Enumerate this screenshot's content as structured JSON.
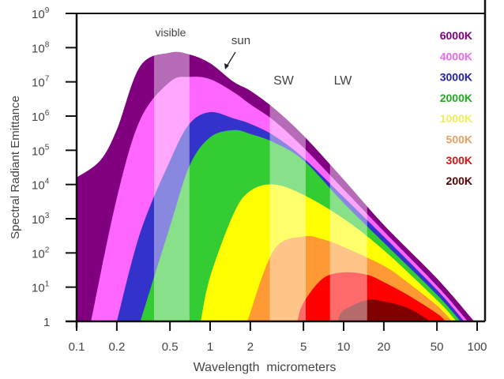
{
  "chart_data": {
    "type": "area",
    "xlabel": "Wavelength  micrometers",
    "ylabel": "Spectral Radiant Emittance",
    "x_scale": "log",
    "y_scale": "log",
    "xlim": [
      0.1,
      100
    ],
    "ylim": [
      1,
      1000000000
    ],
    "grid": false,
    "legend_placement": "top-right",
    "x_ticks": [
      {
        "value": 0.1,
        "label": "0.1"
      },
      {
        "value": 0.2,
        "label": "0.2"
      },
      {
        "value": 0.5,
        "label": "0.5"
      },
      {
        "value": 1,
        "label": "1"
      },
      {
        "value": 2,
        "label": "2"
      },
      {
        "value": 5,
        "label": "5"
      },
      {
        "value": 10,
        "label": "10"
      },
      {
        "value": 20,
        "label": "20"
      },
      {
        "value": 50,
        "label": "50"
      },
      {
        "value": 100,
        "label": "100"
      }
    ],
    "y_ticks": [
      {
        "value": 1,
        "base": "1",
        "exp": ""
      },
      {
        "value": 10,
        "base": "10",
        "exp": "1"
      },
      {
        "value": 100,
        "base": "10",
        "exp": "2"
      },
      {
        "value": 1000,
        "base": "10",
        "exp": "3"
      },
      {
        "value": 10000,
        "base": "10",
        "exp": "4"
      },
      {
        "value": 100000,
        "base": "10",
        "exp": "5"
      },
      {
        "value": 1000000,
        "base": "10",
        "exp": "6"
      },
      {
        "value": 10000000,
        "base": "10",
        "exp": "7"
      },
      {
        "value": 100000000,
        "base": "10",
        "exp": "8"
      },
      {
        "value": 1000000000,
        "base": "10",
        "exp": "9"
      }
    ],
    "series": [
      {
        "name": "6000K",
        "color": "#800080",
        "x": [
          0.1,
          0.15,
          0.2,
          0.3,
          0.5,
          0.7,
          1,
          1.5,
          2,
          3,
          5,
          10,
          20,
          50,
          95
        ],
        "y": [
          16000,
          50000,
          400000,
          29000000,
          71000000,
          63000000,
          35000000,
          10000000,
          5500000,
          1700000,
          270000,
          14000,
          660,
          18,
          1
        ]
      },
      {
        "name": "4000K",
        "color": "#ff66ff",
        "x": [
          0.128,
          0.2,
          0.3,
          0.5,
          0.7,
          1,
          1.5,
          2,
          3,
          5,
          10,
          20,
          50,
          85
        ],
        "y": [
          1,
          4000,
          800000,
          10000000,
          14000000,
          12000000,
          5000000,
          2200000,
          740000,
          120000,
          7200,
          430,
          11,
          1
        ]
      },
      {
        "name": "3000K",
        "color": "#3333cc",
        "x": [
          0.2,
          0.3,
          0.5,
          0.7,
          1,
          1.5,
          2,
          3,
          5,
          10,
          20,
          50,
          80
        ],
        "y": [
          1,
          400,
          49000,
          590000,
          1300000,
          850000,
          590000,
          270000,
          60000,
          4300,
          300,
          8.3,
          1
        ]
      },
      {
        "name": "2000K",
        "color": "#33cc33",
        "x": [
          0.3,
          0.5,
          0.7,
          1,
          1.5,
          2,
          3,
          5,
          10,
          20,
          50,
          75
        ],
        "y": [
          1,
          590,
          35000,
          240000,
          390000,
          300000,
          170000,
          51000,
          2900,
          200,
          6,
          1
        ]
      },
      {
        "name": "1000K",
        "color": "#ffff00",
        "x": [
          0.85,
          1,
          1.5,
          2,
          3,
          5,
          10,
          20,
          50,
          70
        ],
        "y": [
          1,
          20,
          1400,
          6500,
          10000,
          5000,
          1000,
          120,
          4.2,
          1
        ]
      },
      {
        "name": "500K",
        "color": "#ff9933",
        "x": [
          1.9,
          3,
          5,
          7,
          10,
          20,
          30,
          50,
          65
        ],
        "y": [
          1,
          120,
          300,
          250,
          150,
          42,
          14,
          2.9,
          1
        ]
      },
      {
        "name": "300K",
        "color": "#ff0000",
        "x": [
          4.5,
          5,
          7,
          10,
          15,
          20,
          30,
          50,
          58
        ],
        "y": [
          1,
          3.5,
          18,
          27,
          23,
          14,
          6,
          1.7,
          1
        ]
      },
      {
        "name": "200K",
        "color": "#800000",
        "x": [
          9,
          10,
          15,
          20,
          30,
          45
        ],
        "y": [
          1,
          2.1,
          4.2,
          3.8,
          2.5,
          1
        ]
      }
    ],
    "bands": [
      {
        "label": "visible",
        "range": [
          0.38,
          0.7
        ]
      },
      {
        "label": "SW",
        "range": [
          2.8,
          5.2
        ]
      },
      {
        "label": "LW",
        "range": [
          7.9,
          15
        ]
      }
    ],
    "annotations": [
      {
        "text": "sun",
        "points_to": "6000K",
        "at_x": 1.3
      }
    ],
    "legend_text_colors": {
      "6000K": "#800080",
      "4000K": "#ee66ee",
      "3000K": "#2222aa",
      "2000K": "#22aa22",
      "1000K": "#eeee55",
      "500K": "#e8a060",
      "300K": "#dd1111",
      "200K": "#550000"
    }
  }
}
